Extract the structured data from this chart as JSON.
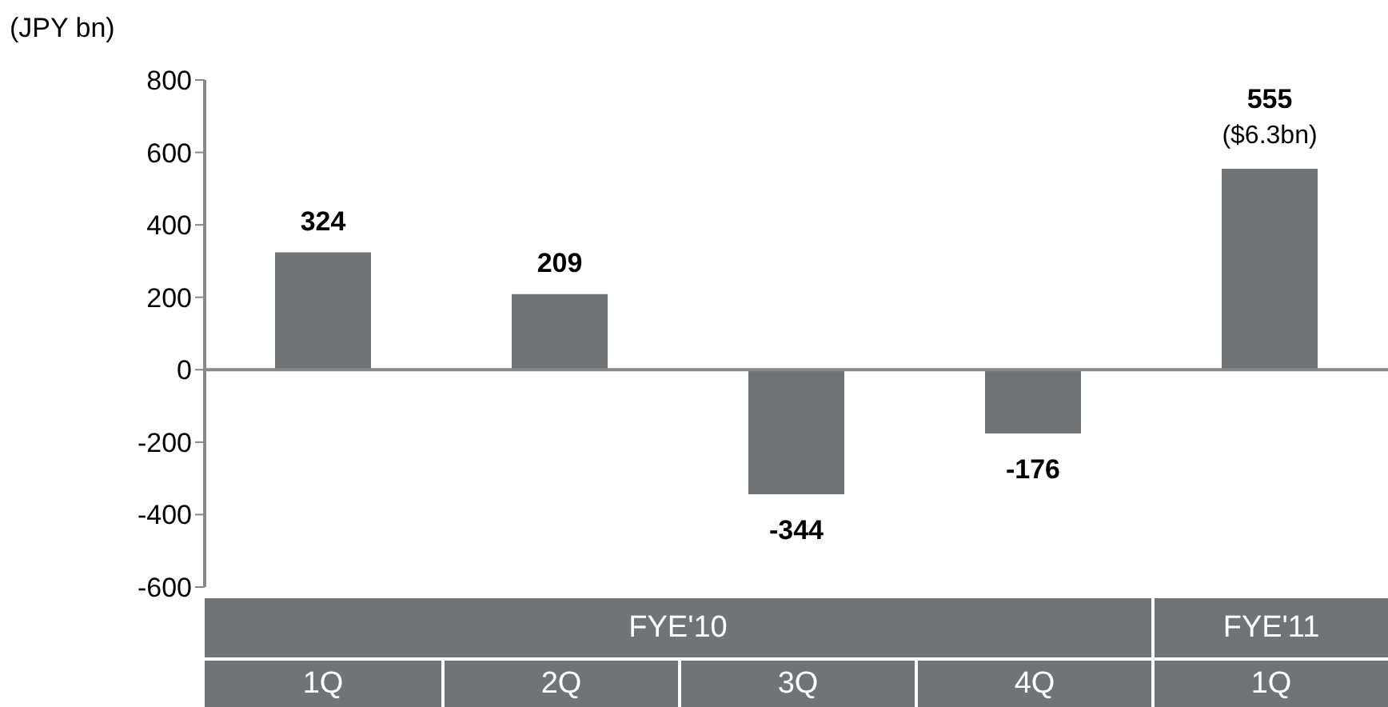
{
  "chart_data": {
    "type": "bar",
    "ylabel": "(JPY bn)",
    "categories": [
      "1Q",
      "2Q",
      "3Q",
      "4Q",
      "1Q"
    ],
    "values": [
      324,
      209,
      -344,
      -176,
      555
    ],
    "color": "#717477",
    "ylim": [
      -600,
      800
    ],
    "yticks": [
      -600,
      -400,
      -200,
      0,
      200,
      400,
      600,
      800
    ],
    "data_labels": true,
    "annotations": [
      "FYE'10",
      "FYE'11",
      "($6.3bn)"
    ]
  }
}
